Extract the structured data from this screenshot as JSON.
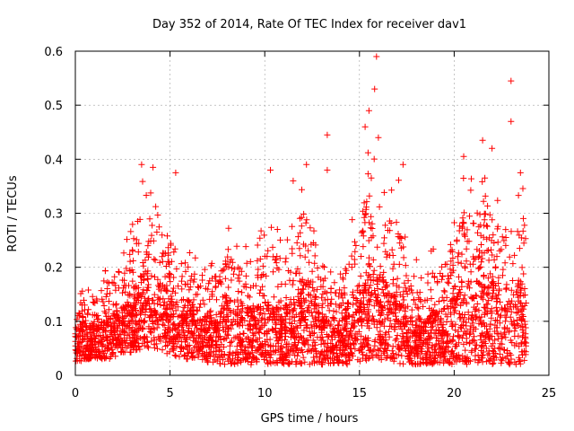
{
  "chart_data": {
    "type": "scatter",
    "title": "Day 352 of 2014, Rate Of TEC Index for receiver dav1",
    "xlabel": "GPS time / hours",
    "ylabel": "ROTI / TECUs",
    "xlim": [
      0,
      25
    ],
    "ylim": [
      0,
      0.6
    ],
    "xticks": [
      "0",
      "5",
      "10",
      "15",
      "20",
      "25"
    ],
    "xtick_values": [
      0,
      5,
      10,
      15,
      20,
      25
    ],
    "yticks": [
      "0",
      "0.1",
      "0.2",
      "0.3",
      "0.4",
      "0.5",
      "0.6"
    ],
    "ytick_values": [
      0,
      0.1,
      0.2,
      0.3,
      0.4,
      0.5,
      0.6
    ],
    "grid": true,
    "marker": "+",
    "color": "#ff0000",
    "envelope": {
      "x": [
        0,
        0.5,
        1,
        1.5,
        2,
        2.5,
        3,
        3.5,
        4,
        4.5,
        5,
        5.5,
        6,
        6.5,
        7,
        7.5,
        8,
        8.5,
        9,
        9.5,
        10,
        10.5,
        11,
        11.5,
        12,
        12.5,
        13,
        13.5,
        14,
        14.5,
        15,
        15.5,
        16,
        16.5,
        17,
        17.5,
        18,
        18.5,
        19,
        19.5,
        20,
        20.5,
        21,
        21.5,
        22,
        22.5,
        23,
        23.5,
        23.8
      ],
      "upper": [
        0.14,
        0.17,
        0.17,
        0.19,
        0.22,
        0.24,
        0.28,
        0.38,
        0.37,
        0.33,
        0.3,
        0.2,
        0.29,
        0.21,
        0.22,
        0.23,
        0.3,
        0.26,
        0.26,
        0.26,
        0.28,
        0.3,
        0.26,
        0.29,
        0.38,
        0.36,
        0.22,
        0.21,
        0.22,
        0.28,
        0.35,
        0.44,
        0.4,
        0.35,
        0.38,
        0.25,
        0.22,
        0.22,
        0.24,
        0.25,
        0.3,
        0.38,
        0.36,
        0.4,
        0.36,
        0.33,
        0.37,
        0.35,
        0.34
      ],
      "lower": [
        0.02,
        0.03,
        0.03,
        0.03,
        0.03,
        0.04,
        0.04,
        0.05,
        0.05,
        0.04,
        0.04,
        0.03,
        0.03,
        0.03,
        0.02,
        0.02,
        0.02,
        0.02,
        0.02,
        0.02,
        0.02,
        0.02,
        0.02,
        0.02,
        0.02,
        0.02,
        0.02,
        0.02,
        0.02,
        0.02,
        0.02,
        0.03,
        0.03,
        0.02,
        0.02,
        0.02,
        0.02,
        0.02,
        0.02,
        0.02,
        0.02,
        0.02,
        0.02,
        0.02,
        0.02,
        0.02,
        0.02,
        0.02,
        0.02
      ]
    },
    "outliers": [
      {
        "x": 15.9,
        "y": 0.59
      },
      {
        "x": 15.8,
        "y": 0.53
      },
      {
        "x": 23.0,
        "y": 0.545
      },
      {
        "x": 23.0,
        "y": 0.47
      },
      {
        "x": 15.5,
        "y": 0.49
      },
      {
        "x": 15.3,
        "y": 0.46
      },
      {
        "x": 13.3,
        "y": 0.445
      },
      {
        "x": 21.5,
        "y": 0.435
      },
      {
        "x": 16.0,
        "y": 0.44
      },
      {
        "x": 22.0,
        "y": 0.42
      },
      {
        "x": 3.5,
        "y": 0.39
      },
      {
        "x": 4.1,
        "y": 0.385
      },
      {
        "x": 5.3,
        "y": 0.375
      },
      {
        "x": 12.2,
        "y": 0.39
      },
      {
        "x": 13.3,
        "y": 0.38
      },
      {
        "x": 10.3,
        "y": 0.38
      },
      {
        "x": 20.5,
        "y": 0.405
      },
      {
        "x": 23.5,
        "y": 0.375
      },
      {
        "x": 17.3,
        "y": 0.39
      },
      {
        "x": 11.5,
        "y": 0.36
      }
    ]
  }
}
